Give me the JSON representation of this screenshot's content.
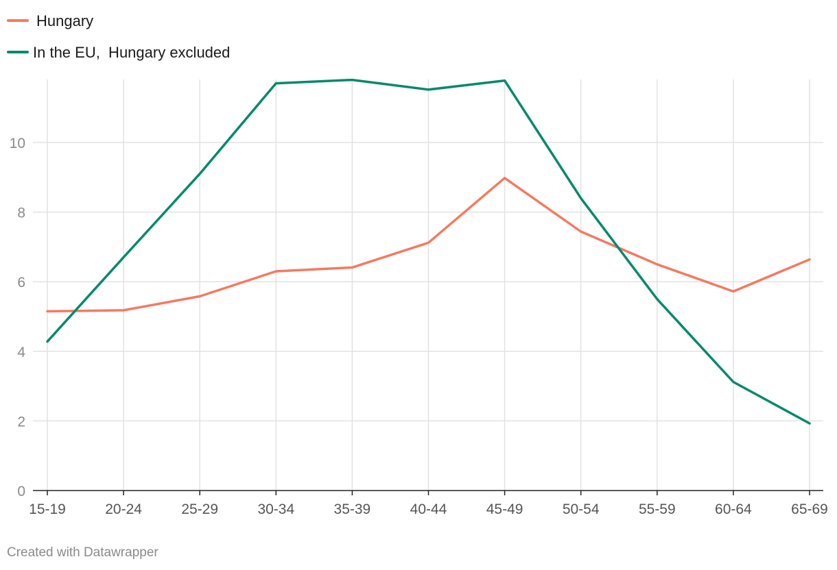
{
  "chart_data": {
    "type": "line",
    "title": "",
    "xlabel": "",
    "ylabel": "",
    "categories": [
      "15-19",
      "20-24",
      "25-29",
      "30-34",
      "35-39",
      "40-44",
      "45-49",
      "50-54",
      "55-59",
      "60-64",
      "65-69"
    ],
    "yticks": [
      "0",
      "2",
      "4",
      "6",
      "8",
      "10"
    ],
    "ylim": [
      0,
      11.8
    ],
    "grid": true,
    "legend_position": "top-left",
    "series": [
      {
        "name": "Hungary",
        "color": "#f47a60",
        "values": [
          5.15,
          5.18,
          5.58,
          6.3,
          6.41,
          7.12,
          8.98,
          7.44,
          6.5,
          5.72,
          6.64
        ]
      },
      {
        "name": "In the EU,  Hungary excluded",
        "color": "#06896c",
        "values": [
          4.28,
          6.7,
          9.1,
          11.7,
          11.8,
          11.52,
          11.78,
          8.4,
          5.5,
          3.12,
          1.93
        ]
      }
    ]
  },
  "footer": {
    "credit": "Created with Datawrapper"
  }
}
